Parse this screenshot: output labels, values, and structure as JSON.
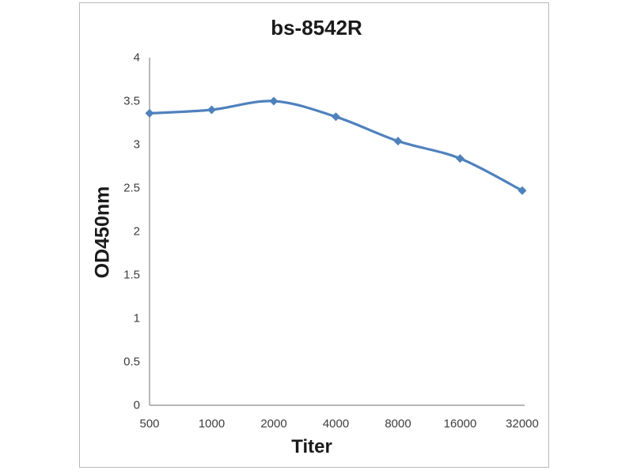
{
  "chart_data": {
    "type": "line",
    "title": "bs-8542R",
    "xlabel": "Titer",
    "ylabel": "OD450nm",
    "categories": [
      "500",
      "1000",
      "2000",
      "4000",
      "8000",
      "16000",
      "32000"
    ],
    "series": [
      {
        "name": "OD450nm",
        "values": [
          3.36,
          3.4,
          3.5,
          3.32,
          3.04,
          2.84,
          2.47
        ]
      }
    ],
    "yticks": [
      "0",
      "0.5",
      "1",
      "1.5",
      "2",
      "2.5",
      "3",
      "3.5",
      "4"
    ],
    "ylim": [
      0,
      4
    ],
    "grid": false,
    "legend": "none",
    "marker": "diamond",
    "line_color": "#4f81bd",
    "marker_color": "#4f81bd",
    "axis_color": "#9d9d9d",
    "tick_label_color": "#3d3d3d",
    "text_color": "#1a1a1a",
    "frame_border_color": "#b9b9b9",
    "background_color": "#ffffff"
  }
}
